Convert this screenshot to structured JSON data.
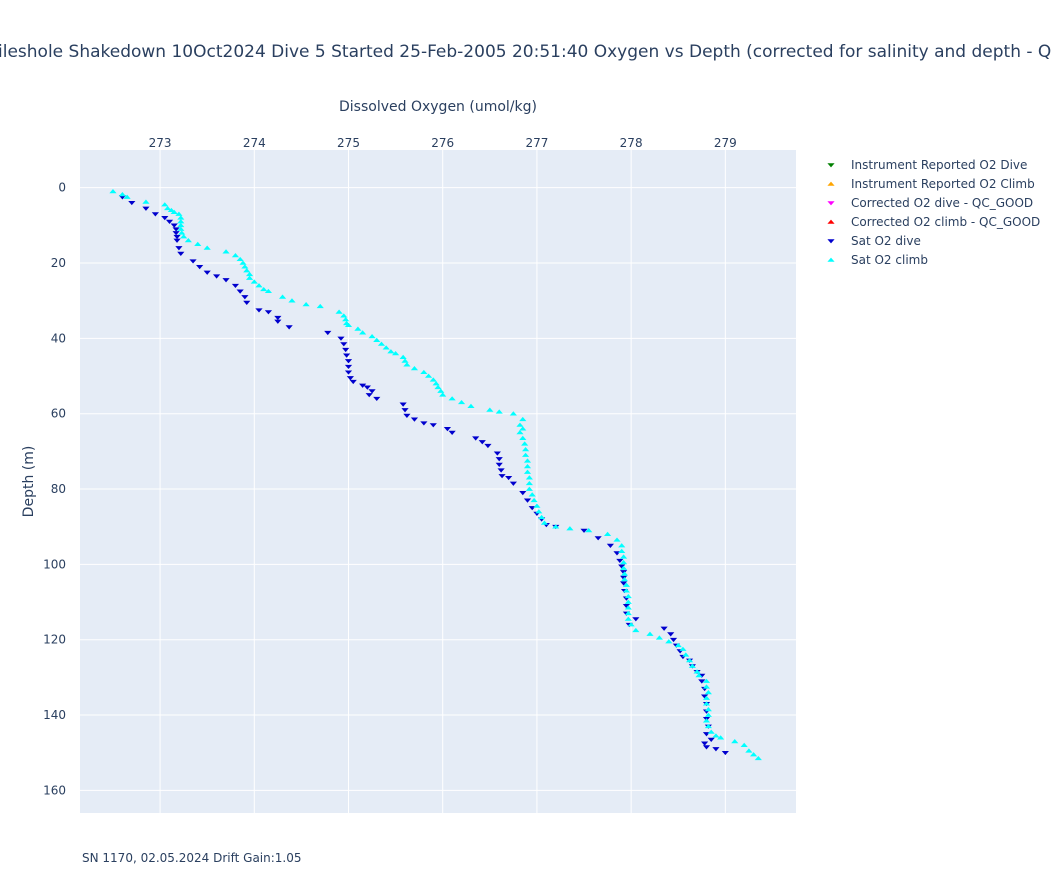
{
  "chart_data": {
    "type": "scatter",
    "title": "ileshole Shakedown 10Oct2024 Dive 5 Started 25-Feb-2005 20:51:40  Oxygen vs Depth (corrected for salinity and depth - Q",
    "xlabel": "Dissolved Oxygen (umol/kg)",
    "ylabel": "Depth (m)",
    "xlim": [
      272.15,
      279.75
    ],
    "ylim": [
      166,
      -10
    ],
    "y_reversed": true,
    "x_axis_position": "top",
    "grid": true,
    "legend_position": "right",
    "xticks": [
      "273",
      "274",
      "275",
      "276",
      "277",
      "278",
      "279"
    ],
    "yticks": [
      "0",
      "20",
      "40",
      "60",
      "80",
      "100",
      "120",
      "140",
      "160"
    ],
    "annotation": "SN 1170, 02.05.2024 Drift Gain:1.05",
    "series": [
      {
        "name": "Instrument Reported O2 Dive",
        "marker": "triangle-down",
        "color": "#008000",
        "points": []
      },
      {
        "name": "Instrument Reported O2 Climb",
        "marker": "triangle-up",
        "color": "#ffa500",
        "points": []
      },
      {
        "name": "Corrected O2 dive - QC_GOOD",
        "marker": "triangle-down",
        "color": "#ff00ff",
        "points": []
      },
      {
        "name": "Corrected O2 climb - QC_GOOD",
        "marker": "triangle-up",
        "color": "#ff0000",
        "points": []
      },
      {
        "name": "Sat O2 dive",
        "marker": "triangle-down",
        "color": "#0000cd",
        "points": [
          [
            272.6,
            2.5
          ],
          [
            272.7,
            4.0
          ],
          [
            272.85,
            5.5
          ],
          [
            272.95,
            7.0
          ],
          [
            273.05,
            8.0
          ],
          [
            273.1,
            9.0
          ],
          [
            273.15,
            10.0
          ],
          [
            273.17,
            11.0
          ],
          [
            273.17,
            12.0
          ],
          [
            273.18,
            13.0
          ],
          [
            273.18,
            14.0
          ],
          [
            273.2,
            16.0
          ],
          [
            273.22,
            17.5
          ],
          [
            273.35,
            19.5
          ],
          [
            273.42,
            21.0
          ],
          [
            273.5,
            22.5
          ],
          [
            273.6,
            23.5
          ],
          [
            273.7,
            24.5
          ],
          [
            273.8,
            26.0
          ],
          [
            273.85,
            27.5
          ],
          [
            273.9,
            29.0
          ],
          [
            273.92,
            30.5
          ],
          [
            274.05,
            32.5
          ],
          [
            274.15,
            33.0
          ],
          [
            274.25,
            34.5
          ],
          [
            274.25,
            35.5
          ],
          [
            274.37,
            37.0
          ],
          [
            274.78,
            38.5
          ],
          [
            274.92,
            40.0
          ],
          [
            274.95,
            41.5
          ],
          [
            274.97,
            43.0
          ],
          [
            274.98,
            44.5
          ],
          [
            275.0,
            46.0
          ],
          [
            275.0,
            47.5
          ],
          [
            275.0,
            49.0
          ],
          [
            275.02,
            50.5
          ],
          [
            275.05,
            51.5
          ],
          [
            275.15,
            52.5
          ],
          [
            275.2,
            53.0
          ],
          [
            275.25,
            54.0
          ],
          [
            275.22,
            55.0
          ],
          [
            275.3,
            56.0
          ],
          [
            275.58,
            57.5
          ],
          [
            275.6,
            59.0
          ],
          [
            275.62,
            60.5
          ],
          [
            275.7,
            61.5
          ],
          [
            275.8,
            62.5
          ],
          [
            275.9,
            63.0
          ],
          [
            276.05,
            64.0
          ],
          [
            276.1,
            65.0
          ],
          [
            276.35,
            66.5
          ],
          [
            276.42,
            67.5
          ],
          [
            276.48,
            68.5
          ],
          [
            276.58,
            70.5
          ],
          [
            276.6,
            72.0
          ],
          [
            276.6,
            73.5
          ],
          [
            276.62,
            75.0
          ],
          [
            276.63,
            76.5
          ],
          [
            276.7,
            77.0
          ],
          [
            276.75,
            78.5
          ],
          [
            276.85,
            81.0
          ],
          [
            276.9,
            83.0
          ],
          [
            276.95,
            85.0
          ],
          [
            277.0,
            86.5
          ],
          [
            277.05,
            88.0
          ],
          [
            277.1,
            89.5
          ],
          [
            277.2,
            90.0
          ],
          [
            277.5,
            91.0
          ],
          [
            277.65,
            93.0
          ],
          [
            277.78,
            95.0
          ],
          [
            277.85,
            97.0
          ],
          [
            277.88,
            99.0
          ],
          [
            277.9,
            100.5
          ],
          [
            277.92,
            102.0
          ],
          [
            277.92,
            103.5
          ],
          [
            277.92,
            105.0
          ],
          [
            277.93,
            107.0
          ],
          [
            277.95,
            109.0
          ],
          [
            277.95,
            111.0
          ],
          [
            277.95,
            113.0
          ],
          [
            278.05,
            114.5
          ],
          [
            277.98,
            116.0
          ],
          [
            278.35,
            117.0
          ],
          [
            278.42,
            118.5
          ],
          [
            278.45,
            120.0
          ],
          [
            278.48,
            121.5
          ],
          [
            278.52,
            123.0
          ],
          [
            278.55,
            124.5
          ],
          [
            278.62,
            125.5
          ],
          [
            278.65,
            127.0
          ],
          [
            278.7,
            128.5
          ],
          [
            278.75,
            129.5
          ],
          [
            278.75,
            131.0
          ],
          [
            278.78,
            133.0
          ],
          [
            278.78,
            135.0
          ],
          [
            278.8,
            137.0
          ],
          [
            278.8,
            139.0
          ],
          [
            278.8,
            141.0
          ],
          [
            278.82,
            143.0
          ],
          [
            278.8,
            145.0
          ],
          [
            278.85,
            146.5
          ],
          [
            278.78,
            147.5
          ],
          [
            278.8,
            148.5
          ],
          [
            278.9,
            149.0
          ],
          [
            279.0,
            150.0
          ]
        ]
      },
      {
        "name": "Sat O2 climb",
        "marker": "triangle-up",
        "color": "#00ffff",
        "points": [
          [
            272.5,
            1.0
          ],
          [
            272.6,
            1.8
          ],
          [
            272.65,
            2.5
          ],
          [
            272.85,
            3.8
          ],
          [
            273.05,
            4.5
          ],
          [
            273.08,
            5.5
          ],
          [
            273.12,
            6.0
          ],
          [
            273.15,
            6.5
          ],
          [
            273.2,
            7.0
          ],
          [
            273.22,
            8.0
          ],
          [
            273.22,
            9.0
          ],
          [
            273.22,
            10.0
          ],
          [
            273.22,
            11.0
          ],
          [
            273.23,
            12.0
          ],
          [
            273.25,
            13.0
          ],
          [
            273.3,
            14.0
          ],
          [
            273.4,
            15.0
          ],
          [
            273.5,
            16.0
          ],
          [
            273.7,
            17.0
          ],
          [
            273.8,
            18.0
          ],
          [
            273.85,
            19.0
          ],
          [
            273.88,
            20.0
          ],
          [
            273.9,
            21.0
          ],
          [
            273.92,
            22.0
          ],
          [
            273.95,
            23.0
          ],
          [
            273.95,
            24.0
          ],
          [
            274.0,
            25.0
          ],
          [
            274.05,
            26.0
          ],
          [
            274.1,
            27.0
          ],
          [
            274.15,
            27.5
          ],
          [
            274.3,
            29.0
          ],
          [
            274.4,
            30.0
          ],
          [
            274.55,
            31.0
          ],
          [
            274.7,
            31.5
          ],
          [
            274.9,
            33.0
          ],
          [
            274.95,
            34.0
          ],
          [
            274.97,
            35.0
          ],
          [
            274.98,
            36.0
          ],
          [
            275.0,
            36.5
          ],
          [
            275.1,
            37.5
          ],
          [
            275.15,
            38.5
          ],
          [
            275.25,
            39.5
          ],
          [
            275.3,
            40.5
          ],
          [
            275.35,
            41.5
          ],
          [
            275.4,
            42.5
          ],
          [
            275.45,
            43.5
          ],
          [
            275.5,
            44.0
          ],
          [
            275.58,
            45.0
          ],
          [
            275.6,
            46.0
          ],
          [
            275.62,
            47.0
          ],
          [
            275.7,
            48.0
          ],
          [
            275.8,
            49.0
          ],
          [
            275.85,
            50.0
          ],
          [
            275.9,
            51.0
          ],
          [
            275.93,
            52.0
          ],
          [
            275.95,
            53.0
          ],
          [
            275.98,
            54.0
          ],
          [
            276.0,
            55.0
          ],
          [
            276.1,
            56.0
          ],
          [
            276.2,
            57.0
          ],
          [
            276.3,
            58.0
          ],
          [
            276.5,
            59.0
          ],
          [
            276.6,
            59.5
          ],
          [
            276.75,
            60.0
          ],
          [
            276.85,
            61.5
          ],
          [
            276.82,
            63.0
          ],
          [
            276.85,
            64.0
          ],
          [
            276.82,
            65.0
          ],
          [
            276.85,
            66.5
          ],
          [
            276.87,
            68.0
          ],
          [
            276.88,
            69.5
          ],
          [
            276.88,
            71.0
          ],
          [
            276.9,
            72.5
          ],
          [
            276.9,
            74.0
          ],
          [
            276.9,
            75.5
          ],
          [
            276.92,
            77.0
          ],
          [
            276.92,
            78.5
          ],
          [
            276.92,
            80.0
          ],
          [
            276.95,
            81.5
          ],
          [
            276.97,
            83.0
          ],
          [
            277.0,
            84.5
          ],
          [
            277.02,
            86.0
          ],
          [
            277.05,
            87.5
          ],
          [
            277.08,
            89.0
          ],
          [
            277.2,
            90.0
          ],
          [
            277.35,
            90.5
          ],
          [
            277.55,
            91.0
          ],
          [
            277.75,
            92.0
          ],
          [
            277.85,
            93.5
          ],
          [
            277.9,
            95.0
          ],
          [
            277.9,
            96.5
          ],
          [
            277.92,
            98.0
          ],
          [
            277.92,
            99.5
          ],
          [
            277.92,
            101.0
          ],
          [
            277.93,
            102.5
          ],
          [
            277.93,
            104.0
          ],
          [
            277.95,
            105.5
          ],
          [
            277.95,
            107.0
          ],
          [
            277.97,
            108.5
          ],
          [
            277.97,
            110.0
          ],
          [
            277.97,
            111.5
          ],
          [
            277.97,
            113.0
          ],
          [
            277.97,
            114.5
          ],
          [
            278.0,
            116.0
          ],
          [
            278.05,
            117.5
          ],
          [
            278.2,
            118.5
          ],
          [
            278.3,
            119.5
          ],
          [
            278.4,
            120.5
          ],
          [
            278.5,
            121.5
          ],
          [
            278.55,
            122.5
          ],
          [
            278.58,
            124.0
          ],
          [
            278.62,
            125.5
          ],
          [
            278.65,
            127.0
          ],
          [
            278.7,
            128.5
          ],
          [
            278.72,
            129.5
          ],
          [
            278.8,
            131.0
          ],
          [
            278.8,
            132.5
          ],
          [
            278.82,
            134.0
          ],
          [
            278.8,
            135.5
          ],
          [
            278.8,
            137.0
          ],
          [
            278.82,
            138.5
          ],
          [
            278.82,
            140.0
          ],
          [
            278.8,
            141.5
          ],
          [
            278.82,
            143.0
          ],
          [
            278.85,
            144.5
          ],
          [
            278.9,
            145.5
          ],
          [
            278.95,
            146.0
          ],
          [
            279.1,
            147.0
          ],
          [
            279.2,
            148.0
          ],
          [
            279.25,
            149.5
          ],
          [
            279.3,
            150.5
          ],
          [
            279.35,
            151.5
          ]
        ]
      }
    ]
  }
}
